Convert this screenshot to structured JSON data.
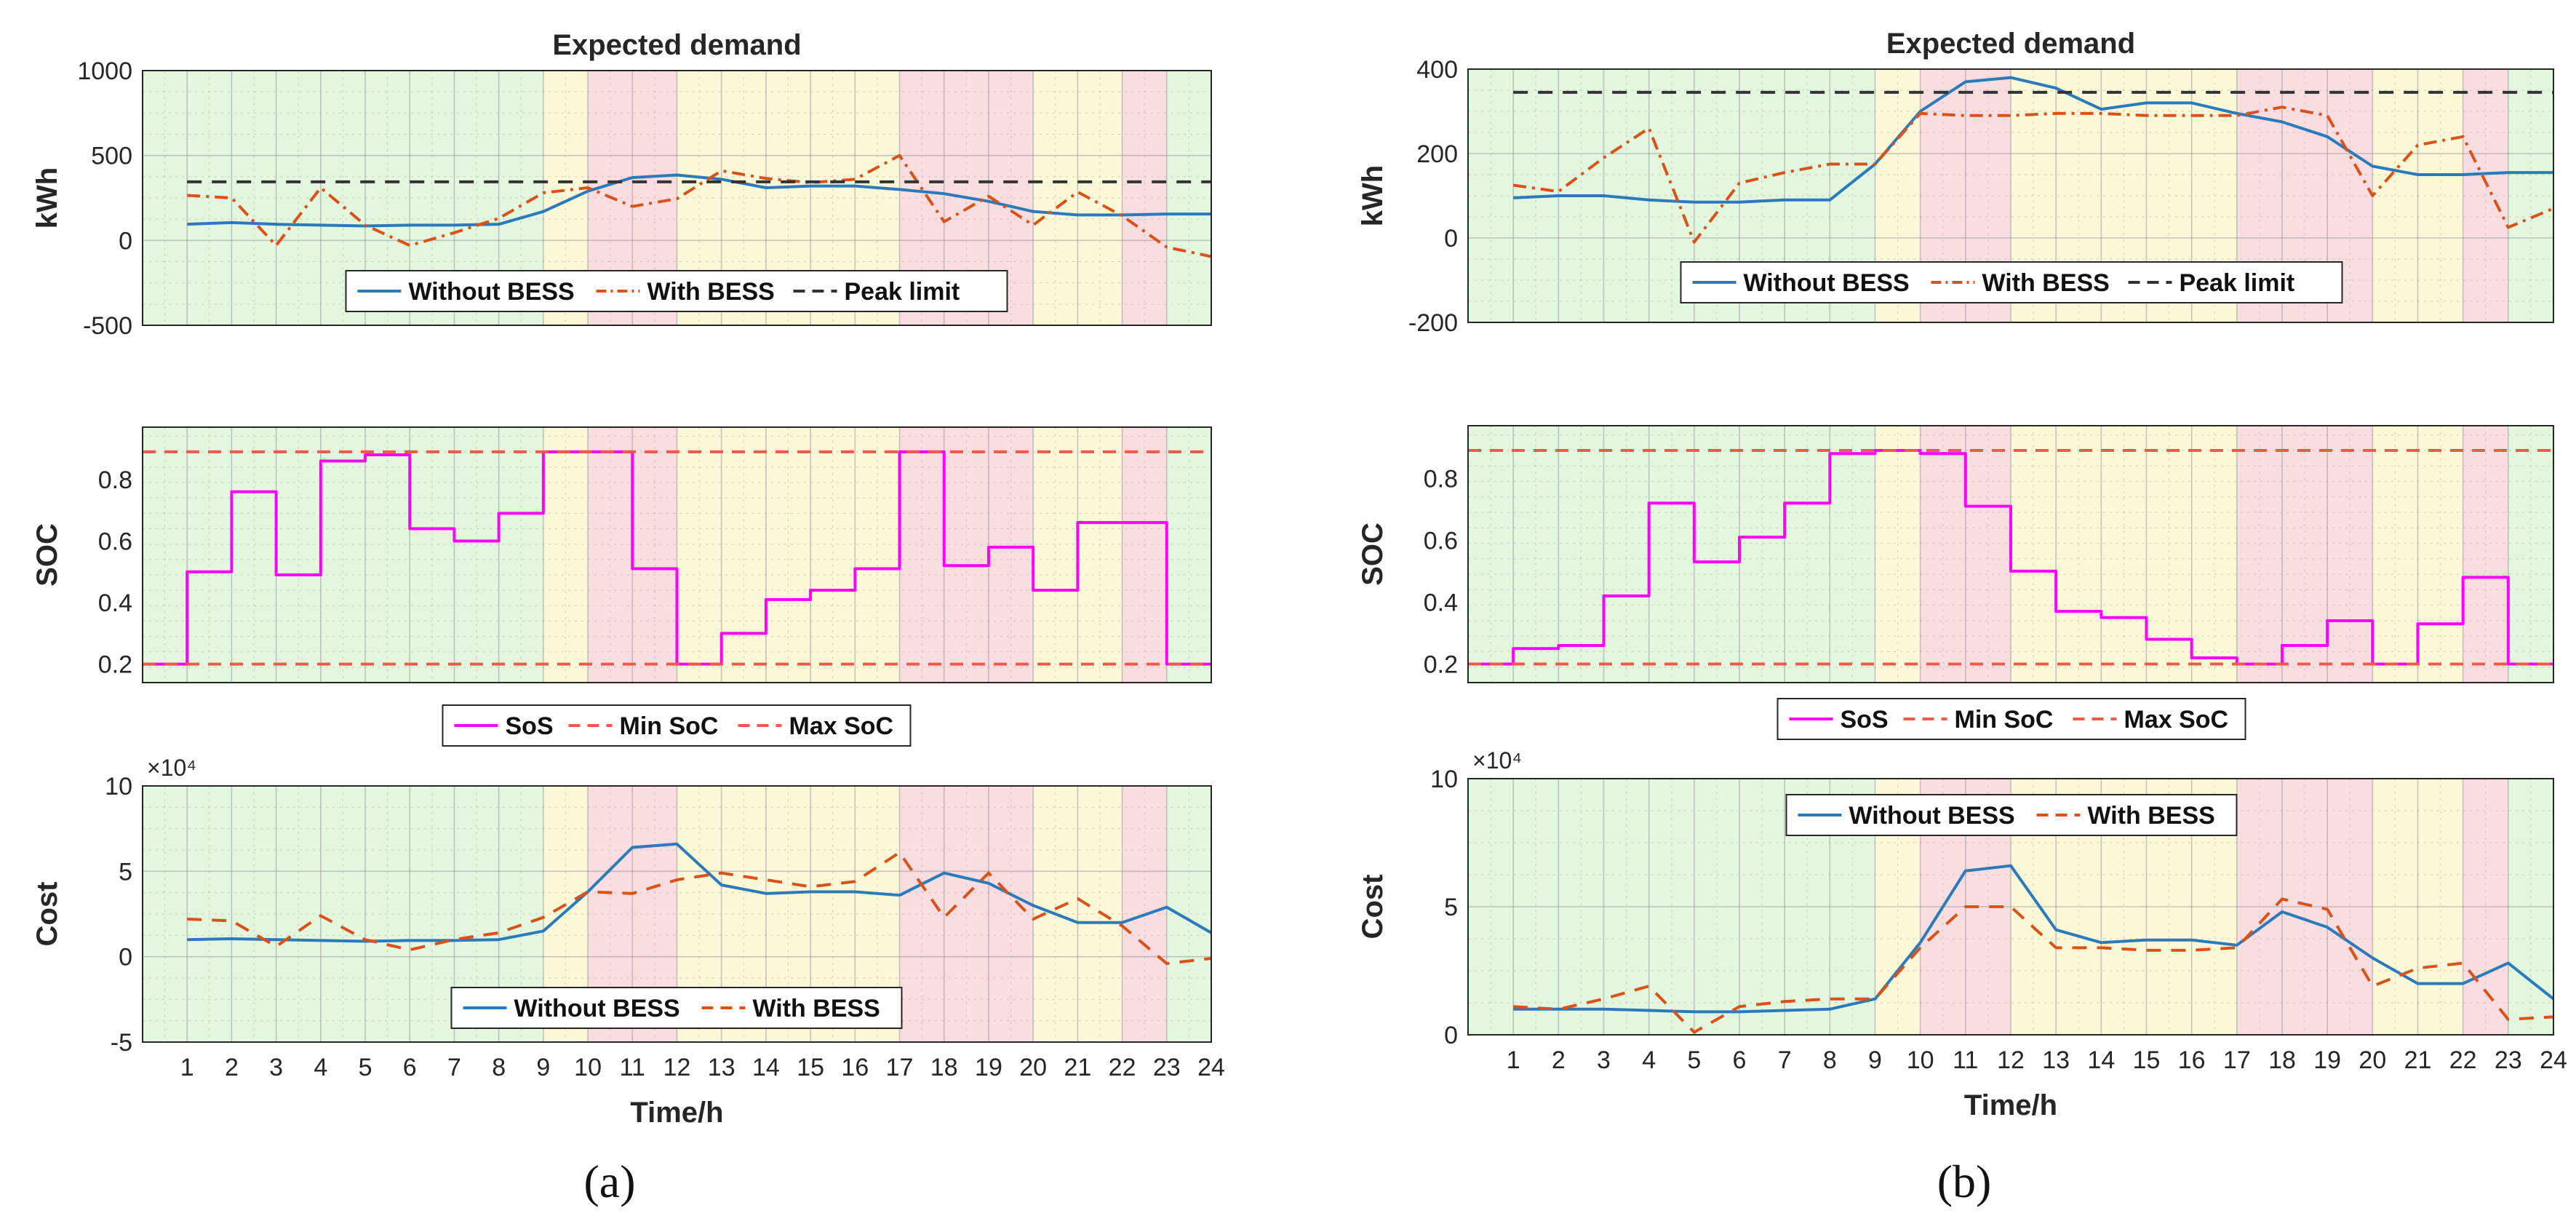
{
  "colors": {
    "without_bess": "#2b7bba",
    "with_bess": "#d95319",
    "peak_limit": "#333333",
    "sos": "#ff00ff",
    "soc_limits": "#f05a4a",
    "band_green": "#e3f7df",
    "band_yellow": "#fbf8d8",
    "band_red": "#f9dde0",
    "grid": "#9a9a9a"
  },
  "shared": {
    "hours": [
      1,
      2,
      3,
      4,
      5,
      6,
      7,
      8,
      9,
      10,
      11,
      12,
      13,
      14,
      15,
      16,
      17,
      18,
      19,
      20,
      21,
      22,
      23,
      24
    ],
    "xlabel": "Time/h",
    "tariff_bands": [
      {
        "from": 0,
        "to": 9,
        "level": "green"
      },
      {
        "from": 9,
        "to": 10,
        "level": "yellow"
      },
      {
        "from": 10,
        "to": 12,
        "level": "red"
      },
      {
        "from": 12,
        "to": 17,
        "level": "yellow"
      },
      {
        "from": 17,
        "to": 20,
        "level": "red"
      },
      {
        "from": 20,
        "to": 22,
        "level": "yellow"
      },
      {
        "from": 22,
        "to": 23,
        "level": "red"
      },
      {
        "from": 23,
        "to": 24,
        "level": "green"
      }
    ]
  },
  "chart_data": [
    {
      "id": "a-demand",
      "panel": "a",
      "type": "line",
      "title": "Expected demand",
      "xlabel": "",
      "ylabel": "kWh",
      "ylim": [
        -500,
        1000
      ],
      "yticks": [
        -500,
        0,
        500,
        1000
      ],
      "ytick_labels": [
        "-500",
        "0",
        "500",
        "1000"
      ],
      "x": [
        1,
        2,
        3,
        4,
        5,
        6,
        7,
        8,
        9,
        10,
        11,
        12,
        13,
        14,
        15,
        16,
        17,
        18,
        19,
        20,
        21,
        22,
        23,
        24
      ],
      "series": [
        {
          "name": "Without BESS",
          "style": "solid",
          "color": "#2b7bba",
          "values": [
            95,
            105,
            95,
            90,
            85,
            90,
            90,
            95,
            170,
            290,
            370,
            385,
            360,
            310,
            320,
            320,
            300,
            275,
            230,
            170,
            150,
            150,
            155,
            155
          ]
        },
        {
          "name": "With BESS",
          "style": "dashdot",
          "color": "#d95319",
          "values": [
            265,
            250,
            -30,
            310,
            90,
            -30,
            45,
            130,
            280,
            310,
            200,
            245,
            410,
            365,
            340,
            360,
            500,
            110,
            260,
            90,
            285,
            145,
            -40,
            -95
          ]
        },
        {
          "name": "Peak limit",
          "style": "dashed",
          "color": "#333333",
          "values": [
            345,
            345,
            345,
            345,
            345,
            345,
            345,
            345,
            345,
            345,
            345,
            345,
            345,
            345,
            345,
            345,
            345,
            345,
            345,
            345,
            345,
            345,
            345,
            345
          ]
        }
      ],
      "legend": [
        "Without BESS",
        "With BESS",
        "Peak limit"
      ],
      "legend_position": "bottom-center"
    },
    {
      "id": "a-soc",
      "panel": "a",
      "type": "step",
      "title": "",
      "xlabel": "",
      "ylabel": "SOC",
      "ylim": [
        0.14,
        0.97
      ],
      "yticks": [
        0.2,
        0.4,
        0.6,
        0.8
      ],
      "ytick_labels": [
        "0.2",
        "0.4",
        "0.6",
        "0.8"
      ],
      "x": [
        0,
        1,
        2,
        3,
        4,
        5,
        6,
        7,
        8,
        9,
        10,
        11,
        12,
        13,
        14,
        15,
        16,
        17,
        18,
        19,
        20,
        21,
        22,
        23
      ],
      "series": [
        {
          "name": "SoS",
          "style": "step",
          "color": "#ff00ff",
          "values": [
            0.2,
            0.5,
            0.76,
            0.49,
            0.86,
            0.88,
            0.64,
            0.6,
            0.69,
            0.89,
            0.89,
            0.51,
            0.2,
            0.3,
            0.41,
            0.44,
            0.51,
            0.89,
            0.52,
            0.58,
            0.44,
            0.66,
            0.66,
            0.2
          ]
        },
        {
          "name": "Min SoC",
          "style": "dashed",
          "color": "#f05a4a",
          "values": [
            0.2,
            0.2,
            0.2,
            0.2,
            0.2,
            0.2,
            0.2,
            0.2,
            0.2,
            0.2,
            0.2,
            0.2,
            0.2,
            0.2,
            0.2,
            0.2,
            0.2,
            0.2,
            0.2,
            0.2,
            0.2,
            0.2,
            0.2,
            0.2
          ]
        },
        {
          "name": "Max SoC",
          "style": "dashed",
          "color": "#f05a4a",
          "values": [
            0.89,
            0.89,
            0.89,
            0.89,
            0.89,
            0.89,
            0.89,
            0.89,
            0.89,
            0.89,
            0.89,
            0.89,
            0.89,
            0.89,
            0.89,
            0.89,
            0.89,
            0.89,
            0.89,
            0.89,
            0.89,
            0.89,
            0.89,
            0.89
          ]
        }
      ],
      "legend": [
        "SoS",
        "Min SoC",
        "Max SoC"
      ],
      "legend_position": "below"
    },
    {
      "id": "a-cost",
      "panel": "a",
      "type": "line",
      "title": "",
      "xlabel": "Time/h",
      "ylabel": "Cost",
      "ylim": [
        -5,
        10
      ],
      "yticks": [
        -5,
        0,
        5,
        10
      ],
      "ytick_labels": [
        "-5",
        "0",
        "5",
        "10"
      ],
      "multiplier": "×10⁴",
      "x": [
        1,
        2,
        3,
        4,
        5,
        6,
        7,
        8,
        9,
        10,
        11,
        12,
        13,
        14,
        15,
        16,
        17,
        18,
        19,
        20,
        21,
        22,
        23,
        24
      ],
      "series": [
        {
          "name": "Without BESS",
          "style": "solid",
          "color": "#2b7bba",
          "values": [
            1.0,
            1.05,
            1.0,
            0.95,
            0.9,
            0.95,
            0.95,
            1.0,
            1.5,
            3.8,
            6.4,
            6.6,
            4.2,
            3.7,
            3.8,
            3.8,
            3.6,
            4.9,
            4.3,
            3.0,
            2.0,
            2.0,
            2.9,
            1.4
          ]
        },
        {
          "name": "With BESS",
          "style": "dashed",
          "color": "#d95319",
          "values": [
            2.2,
            2.1,
            0.6,
            2.4,
            1.0,
            0.4,
            1.0,
            1.4,
            2.3,
            3.8,
            3.7,
            4.5,
            4.9,
            4.5,
            4.1,
            4.4,
            6.1,
            2.3,
            4.9,
            2.2,
            3.4,
            1.8,
            -0.4,
            -0.1
          ]
        }
      ],
      "legend": [
        "Without BESS",
        "With BESS"
      ],
      "legend_position": "bottom-center"
    },
    {
      "id": "b-demand",
      "panel": "b",
      "type": "line",
      "title": "Expected demand",
      "xlabel": "",
      "ylabel": "kWh",
      "ylim": [
        -200,
        400
      ],
      "yticks": [
        -200,
        0,
        200,
        400
      ],
      "ytick_labels": [
        "-200",
        "0",
        "200",
        "400"
      ],
      "x": [
        1,
        2,
        3,
        4,
        5,
        6,
        7,
        8,
        9,
        10,
        11,
        12,
        13,
        14,
        15,
        16,
        17,
        18,
        19,
        20,
        21,
        22,
        23,
        24
      ],
      "series": [
        {
          "name": "Without BESS",
          "style": "solid",
          "color": "#2b7bba",
          "values": [
            95,
            100,
            100,
            90,
            85,
            85,
            90,
            90,
            175,
            300,
            370,
            380,
            355,
            305,
            320,
            320,
            295,
            275,
            240,
            170,
            150,
            150,
            155,
            155
          ]
        },
        {
          "name": "With BESS",
          "style": "dashdot",
          "color": "#d95319",
          "values": [
            125,
            110,
            190,
            260,
            -10,
            130,
            155,
            175,
            175,
            295,
            290,
            290,
            295,
            295,
            290,
            290,
            290,
            310,
            290,
            100,
            220,
            240,
            25,
            70
          ]
        },
        {
          "name": "Peak limit",
          "style": "dashed",
          "color": "#333333",
          "values": [
            345,
            345,
            345,
            345,
            345,
            345,
            345,
            345,
            345,
            345,
            345,
            345,
            345,
            345,
            345,
            345,
            345,
            345,
            345,
            345,
            345,
            345,
            345,
            345
          ]
        }
      ],
      "legend": [
        "Without BESS",
        "With BESS",
        "Peak limit"
      ],
      "legend_position": "bottom-center"
    },
    {
      "id": "b-soc",
      "panel": "b",
      "type": "step",
      "title": "",
      "xlabel": "",
      "ylabel": "SOC",
      "ylim": [
        0.14,
        0.97
      ],
      "yticks": [
        0.2,
        0.4,
        0.6,
        0.8
      ],
      "ytick_labels": [
        "0.2",
        "0.4",
        "0.6",
        "0.8"
      ],
      "x": [
        0,
        1,
        2,
        3,
        4,
        5,
        6,
        7,
        8,
        9,
        10,
        11,
        12,
        13,
        14,
        15,
        16,
        17,
        18,
        19,
        20,
        21,
        22,
        23
      ],
      "series": [
        {
          "name": "SoS",
          "style": "step",
          "color": "#ff00ff",
          "values": [
            0.2,
            0.25,
            0.26,
            0.42,
            0.72,
            0.53,
            0.61,
            0.72,
            0.88,
            0.89,
            0.88,
            0.71,
            0.5,
            0.37,
            0.35,
            0.28,
            0.22,
            0.2,
            0.26,
            0.34,
            0.2,
            0.33,
            0.48,
            0.2
          ]
        },
        {
          "name": "Min SoC",
          "style": "dashed",
          "color": "#f05a4a",
          "values": [
            0.2,
            0.2,
            0.2,
            0.2,
            0.2,
            0.2,
            0.2,
            0.2,
            0.2,
            0.2,
            0.2,
            0.2,
            0.2,
            0.2,
            0.2,
            0.2,
            0.2,
            0.2,
            0.2,
            0.2,
            0.2,
            0.2,
            0.2,
            0.2
          ]
        },
        {
          "name": "Max SoC",
          "style": "dashed",
          "color": "#f05a4a",
          "values": [
            0.89,
            0.89,
            0.89,
            0.89,
            0.89,
            0.89,
            0.89,
            0.89,
            0.89,
            0.89,
            0.89,
            0.89,
            0.89,
            0.89,
            0.89,
            0.89,
            0.89,
            0.89,
            0.89,
            0.89,
            0.89,
            0.89,
            0.89,
            0.89
          ]
        }
      ],
      "legend": [
        "SoS",
        "Min SoC",
        "Max SoC"
      ],
      "legend_position": "below"
    },
    {
      "id": "b-cost",
      "panel": "b",
      "type": "line",
      "title": "",
      "xlabel": "Time/h",
      "ylabel": "Cost",
      "ylim": [
        0,
        10
      ],
      "yticks": [
        0,
        5,
        10
      ],
      "ytick_labels": [
        "0",
        "5",
        "10"
      ],
      "multiplier": "×10⁴",
      "x": [
        1,
        2,
        3,
        4,
        5,
        6,
        7,
        8,
        9,
        10,
        11,
        12,
        13,
        14,
        15,
        16,
        17,
        18,
        19,
        20,
        21,
        22,
        23,
        24
      ],
      "series": [
        {
          "name": "Without BESS",
          "style": "solid",
          "color": "#2b7bba",
          "values": [
            1.0,
            1.0,
            1.0,
            0.95,
            0.9,
            0.9,
            0.95,
            1.0,
            1.4,
            3.6,
            6.4,
            6.6,
            4.1,
            3.6,
            3.7,
            3.7,
            3.5,
            4.8,
            4.2,
            3.0,
            2.0,
            2.0,
            2.8,
            1.4
          ]
        },
        {
          "name": "With BESS",
          "style": "dashed",
          "color": "#d95319",
          "values": [
            1.1,
            1.0,
            1.4,
            1.9,
            0.1,
            1.1,
            1.3,
            1.4,
            1.4,
            3.4,
            5.0,
            5.0,
            3.4,
            3.4,
            3.3,
            3.3,
            3.4,
            5.3,
            4.9,
            1.9,
            2.6,
            2.8,
            0.6,
            0.7
          ]
        }
      ],
      "legend": [
        "Without BESS",
        "With BESS"
      ],
      "legend_position": "top-center"
    }
  ],
  "panel_labels": {
    "a": "(a)",
    "b": "(b)"
  }
}
